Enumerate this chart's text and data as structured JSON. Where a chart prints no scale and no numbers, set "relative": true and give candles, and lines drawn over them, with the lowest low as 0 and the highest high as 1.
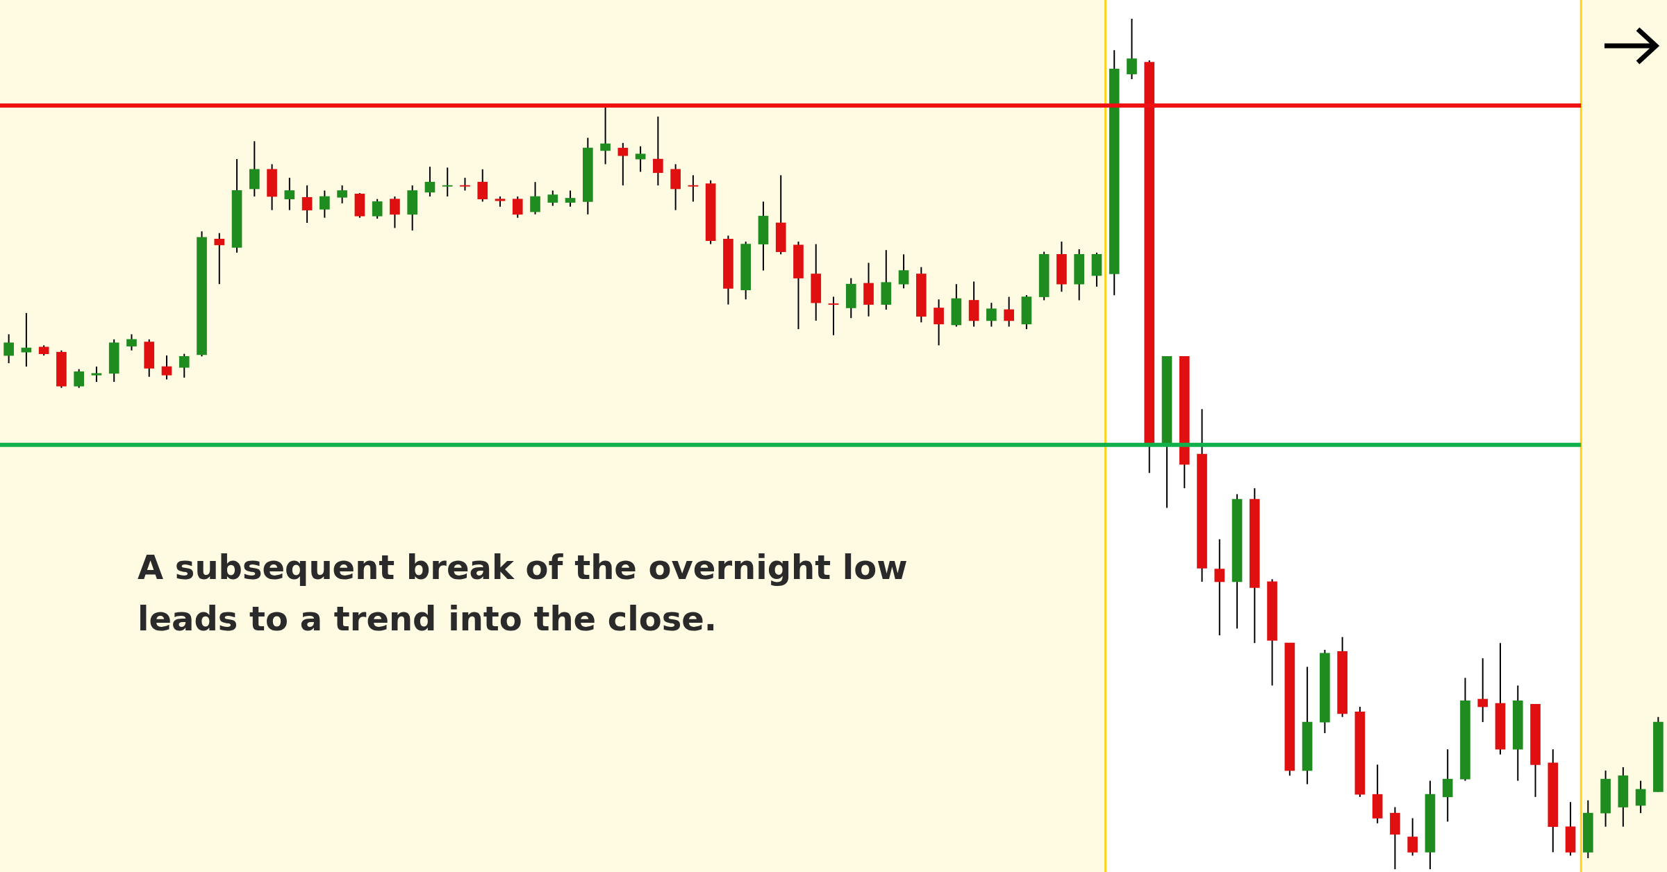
{
  "chart_data": {
    "type": "candlestick",
    "relative": true,
    "categories": [
      null,
      null,
      null,
      null,
      null,
      null,
      null,
      null,
      null,
      null,
      null,
      null,
      null,
      null,
      null,
      null,
      null,
      null,
      null,
      null,
      null,
      null,
      null,
      null,
      null,
      null,
      null,
      null,
      null,
      null,
      null,
      null,
      null,
      null,
      null,
      null,
      null,
      null,
      null,
      null,
      null,
      null,
      null,
      null,
      null,
      null,
      null,
      null,
      null,
      null,
      null,
      null,
      null,
      null,
      null,
      null,
      null,
      null,
      null,
      null,
      null,
      null,
      null,
      null,
      null,
      null,
      null,
      null,
      null,
      null,
      null,
      null,
      null,
      null,
      null,
      null,
      null,
      null,
      null,
      null,
      null,
      null,
      null,
      null,
      null,
      null,
      null,
      null,
      null,
      null,
      null,
      null,
      null,
      null,
      null
    ],
    "ohlc": [
      [
        0.604,
        0.629,
        0.595,
        0.619
      ],
      [
        0.608,
        0.654,
        0.591,
        0.613
      ],
      [
        0.614,
        0.616,
        0.604,
        0.606
      ],
      [
        0.608,
        0.61,
        0.566,
        0.568
      ],
      [
        0.568,
        0.588,
        0.566,
        0.585
      ],
      [
        0.581,
        0.591,
        0.573,
        0.583
      ],
      [
        0.583,
        0.623,
        0.573,
        0.619
      ],
      [
        0.615,
        0.629,
        0.61,
        0.623
      ],
      [
        0.62,
        0.623,
        0.579,
        0.589
      ],
      [
        0.591,
        0.604,
        0.576,
        0.581
      ],
      [
        0.59,
        0.606,
        0.578,
        0.603
      ],
      [
        0.605,
        0.75,
        0.603,
        0.743
      ],
      [
        0.741,
        0.748,
        0.688,
        0.734
      ],
      [
        0.731,
        0.835,
        0.725,
        0.798
      ],
      [
        0.8,
        0.856,
        0.791,
        0.823
      ],
      [
        0.823,
        0.829,
        0.775,
        0.791
      ],
      [
        0.788,
        0.813,
        0.775,
        0.798
      ],
      [
        0.79,
        0.804,
        0.76,
        0.775
      ],
      [
        0.776,
        0.798,
        0.766,
        0.791
      ],
      [
        0.79,
        0.804,
        0.783,
        0.798
      ],
      [
        0.794,
        0.795,
        0.766,
        0.768
      ],
      [
        0.768,
        0.788,
        0.765,
        0.785
      ],
      [
        0.788,
        0.791,
        0.754,
        0.77
      ],
      [
        0.77,
        0.804,
        0.751,
        0.798
      ],
      [
        0.796,
        0.826,
        0.791,
        0.808
      ],
      [
        0.803,
        0.825,
        0.791,
        0.804
      ],
      [
        0.804,
        0.813,
        0.798,
        0.803
      ],
      [
        0.808,
        0.823,
        0.785,
        0.788
      ],
      [
        0.788,
        0.791,
        0.779,
        0.786
      ],
      [
        0.788,
        0.791,
        0.766,
        0.77
      ],
      [
        0.773,
        0.808,
        0.77,
        0.791
      ],
      [
        0.784,
        0.798,
        0.78,
        0.793
      ],
      [
        0.784,
        0.798,
        0.779,
        0.789
      ],
      [
        0.785,
        0.86,
        0.77,
        0.848
      ],
      [
        0.845,
        0.898,
        0.829,
        0.853
      ],
      [
        0.848,
        0.854,
        0.804,
        0.839
      ],
      [
        0.835,
        0.85,
        0.82,
        0.841
      ],
      [
        0.835,
        0.885,
        0.804,
        0.819
      ],
      [
        0.823,
        0.829,
        0.775,
        0.8
      ],
      [
        0.804,
        0.816,
        0.785,
        0.803
      ],
      [
        0.806,
        0.81,
        0.735,
        0.739
      ],
      [
        0.741,
        0.745,
        0.664,
        0.683
      ],
      [
        0.681,
        0.738,
        0.67,
        0.735
      ],
      [
        0.735,
        0.785,
        0.704,
        0.768
      ],
      [
        0.76,
        0.816,
        0.723,
        0.726
      ],
      [
        0.734,
        0.738,
        0.635,
        0.695
      ],
      [
        0.7,
        0.735,
        0.645,
        0.666
      ],
      [
        0.665,
        0.673,
        0.628,
        0.664
      ],
      [
        0.66,
        0.695,
        0.648,
        0.688
      ],
      [
        0.689,
        0.713,
        0.65,
        0.664
      ],
      [
        0.664,
        0.728,
        0.658,
        0.69
      ],
      [
        0.688,
        0.723,
        0.683,
        0.704
      ],
      [
        0.7,
        0.708,
        0.643,
        0.65
      ],
      [
        0.66,
        0.67,
        0.616,
        0.641
      ],
      [
        0.64,
        0.688,
        0.638,
        0.671
      ],
      [
        0.669,
        0.691,
        0.638,
        0.645
      ],
      [
        0.645,
        0.666,
        0.638,
        0.659
      ],
      [
        0.658,
        0.673,
        0.638,
        0.645
      ],
      [
        0.641,
        0.675,
        0.635,
        0.673
      ],
      [
        0.673,
        0.726,
        0.669,
        0.723
      ],
      [
        0.723,
        0.738,
        0.679,
        0.688
      ],
      [
        0.688,
        0.729,
        0.669,
        0.723
      ],
      [
        0.698,
        0.725,
        0.685,
        0.723
      ],
      [
        0.7,
        0.963,
        0.675,
        0.941
      ],
      [
        0.935,
        1.0,
        0.929,
        0.953
      ],
      [
        0.949,
        0.951,
        0.466,
        0.498
      ],
      [
        0.498,
        0.603,
        0.425,
        0.603
      ],
      [
        0.603,
        0.603,
        0.448,
        0.476
      ],
      [
        0.488,
        0.541,
        0.338,
        0.354
      ],
      [
        0.353,
        0.388,
        0.275,
        0.338
      ],
      [
        0.338,
        0.441,
        0.283,
        0.435
      ],
      [
        0.435,
        0.448,
        0.266,
        0.331
      ],
      [
        0.338,
        0.341,
        0.216,
        0.269
      ],
      [
        0.266,
        0.266,
        0.11,
        0.116
      ],
      [
        0.116,
        0.238,
        0.1,
        0.173
      ],
      [
        0.173,
        0.258,
        0.16,
        0.254
      ],
      [
        0.256,
        0.273,
        0.179,
        0.183
      ],
      [
        0.185,
        0.191,
        0.085,
        0.088
      ],
      [
        0.088,
        0.123,
        0.054,
        0.06
      ],
      [
        0.066,
        0.073,
        0.0,
        0.041
      ],
      [
        0.038,
        0.06,
        0.016,
        0.02
      ],
      [
        0.02,
        0.104,
        0.0,
        0.088
      ],
      [
        0.085,
        0.141,
        0.056,
        0.106
      ],
      [
        0.106,
        0.225,
        0.104,
        0.198
      ],
      [
        0.2,
        0.248,
        0.173,
        0.191
      ],
      [
        0.195,
        0.266,
        0.135,
        0.141
      ],
      [
        0.141,
        0.216,
        0.104,
        0.198
      ],
      [
        0.194,
        0.194,
        0.085,
        0.123
      ],
      [
        0.125,
        0.141,
        0.02,
        0.05
      ],
      [
        0.05,
        0.079,
        0.016,
        0.02
      ],
      [
        0.02,
        0.081,
        0.013,
        0.066
      ],
      [
        0.066,
        0.116,
        0.05,
        0.106
      ],
      [
        0.073,
        0.12,
        0.05,
        0.11
      ],
      [
        0.075,
        0.104,
        0.066,
        0.094
      ],
      [
        0.091,
        0.179,
        0.091,
        0.173
      ]
    ],
    "colors": [
      "#1e8c1e",
      "#1e8c1e",
      "#e01010",
      "#e01010",
      "#1e8c1e",
      "#1e8c1e",
      "#1e8c1e",
      "#1e8c1e",
      "#e01010",
      "#e01010",
      "#1e8c1e",
      "#1e8c1e",
      "#e01010",
      "#1e8c1e",
      "#1e8c1e",
      "#e01010",
      "#1e8c1e",
      "#e01010",
      "#1e8c1e",
      "#1e8c1e",
      "#e01010",
      "#1e8c1e",
      "#e01010",
      "#1e8c1e",
      "#1e8c1e",
      "#1e8c1e",
      "#e01010",
      "#e01010",
      "#e01010",
      "#e01010",
      "#1e8c1e",
      "#1e8c1e",
      "#1e8c1e",
      "#1e8c1e",
      "#1e8c1e",
      "#e01010",
      "#1e8c1e",
      "#e01010",
      "#e01010",
      "#e01010",
      "#e01010",
      "#e01010",
      "#1e8c1e",
      "#1e8c1e",
      "#e01010",
      "#e01010",
      "#e01010",
      "#e01010",
      "#1e8c1e",
      "#e01010",
      "#1e8c1e",
      "#1e8c1e",
      "#e01010",
      "#e01010",
      "#1e8c1e",
      "#e01010",
      "#1e8c1e",
      "#e01010",
      "#1e8c1e",
      "#1e8c1e",
      "#e01010",
      "#1e8c1e",
      "#1e8c1e",
      "#1e8c1e",
      "#1e8c1e",
      "#e01010",
      "#1e8c1e",
      "#e01010",
      "#e01010",
      "#e01010",
      "#1e8c1e",
      "#e01010",
      "#e01010",
      "#e01010",
      "#1e8c1e",
      "#1e8c1e",
      "#e01010",
      "#e01010",
      "#e01010",
      "#e01010",
      "#e01010",
      "#1e8c1e",
      "#1e8c1e",
      "#1e8c1e",
      "#e01010",
      "#e01010",
      "#1e8c1e",
      "#e01010",
      "#e01010",
      "#e01010",
      "#1e8c1e",
      "#1e8c1e",
      "#1e8c1e",
      "#1e8c1e",
      "#1e8c1e"
    ],
    "ref_lines": [
      {
        "axis": "y",
        "value": 0.898,
        "color": "#ee1111"
      },
      {
        "axis": "y",
        "value": 0.499,
        "color": "#11b04a"
      }
    ],
    "annotations": [
      "A subsequent break of the overnight low leads to a trend into the close."
    ]
  }
}
